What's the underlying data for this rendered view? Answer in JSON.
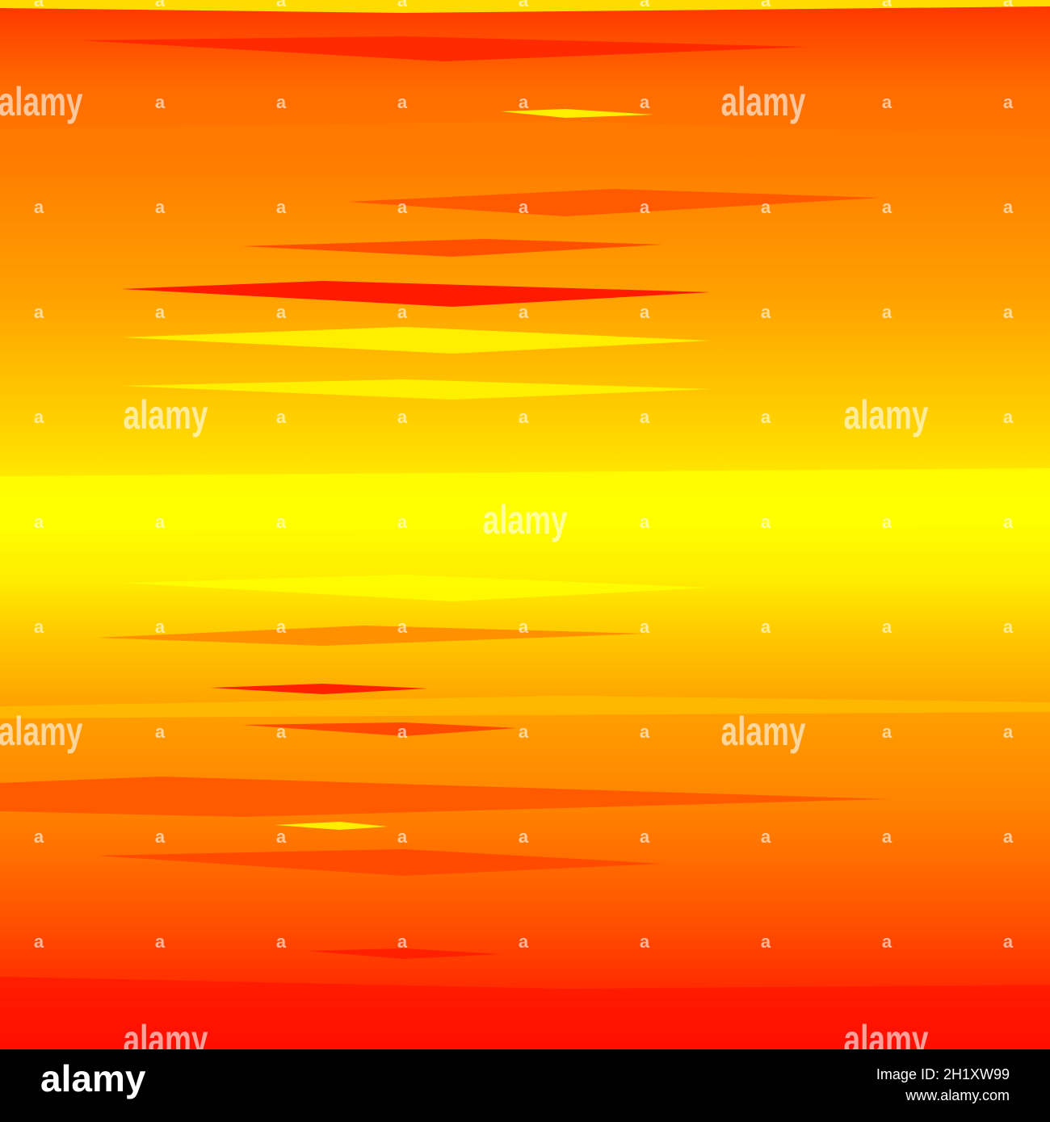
{
  "watermark": {
    "text": "alamy",
    "mark": "a"
  },
  "footer": {
    "logo": "alamy",
    "image_id": "Image ID: 2H1XW99",
    "url": "www.alamy.com"
  }
}
